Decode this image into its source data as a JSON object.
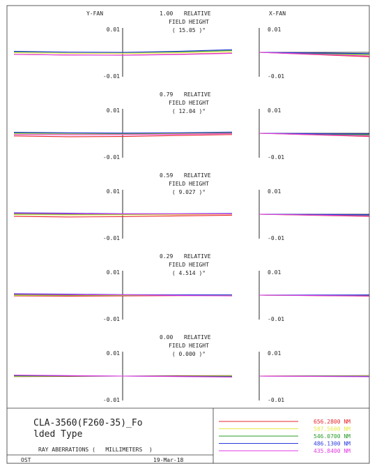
{
  "chart_data": {
    "type": "line",
    "title": "RAY ABERRATIONS ( MILLIMETERS )",
    "panel_labels": {
      "y_fan": "Y-FAN",
      "x_fan": "X-FAN"
    },
    "ylim": [
      -0.01,
      0.01
    ],
    "tick_labels": {
      "top": "0.01",
      "bottom": "-0.01"
    },
    "xlim": [
      -1,
      1
    ],
    "fields": [
      {
        "relative": "1.00",
        "rel_label": "RELATIVE",
        "height_label": "FIELD HEIGHT",
        "angle": "( 15.05 )°",
        "y_fan": [
          {
            "series": "656.2800 NM",
            "x": [
              -1,
              -0.5,
              0,
              0.5,
              1
            ],
            "y": [
              -0.00085,
              -0.0011,
              -0.00115,
              -0.0008,
              -0.0003
            ]
          },
          {
            "series": "587.5600 NM",
            "x": [
              -1,
              -0.5,
              0,
              0.5,
              1
            ],
            "y": [
              -0.0002,
              -0.0004,
              -0.0005,
              -0.0002,
              0.0003
            ]
          },
          {
            "series": "546.0700 NM",
            "x": [
              -1,
              -0.5,
              0,
              0.5,
              1
            ],
            "y": [
              0.0002,
              0.0,
              -0.0001,
              0.0002,
              0.0007
            ]
          },
          {
            "series": "486.1300 NM",
            "x": [
              -1,
              -0.5,
              0,
              0.5,
              1
            ],
            "y": [
              0.0004,
              0.0001,
              0.0,
              0.0004,
              0.0011
            ]
          },
          {
            "series": "435.8400 NM",
            "x": [
              -1,
              -0.5,
              0,
              0.5,
              1
            ],
            "y": [
              -0.0008,
              -0.0011,
              -0.0012,
              -0.0009,
              -0.0004
            ]
          }
        ],
        "x_fan": [
          {
            "series": "656.2800 NM",
            "x": [
              0,
              1
            ],
            "y": [
              0,
              -0.0018
            ]
          },
          {
            "series": "587.5600 NM",
            "x": [
              0,
              1
            ],
            "y": [
              0,
              -0.0012
            ]
          },
          {
            "series": "546.0700 NM",
            "x": [
              0,
              1
            ],
            "y": [
              0,
              -0.0008
            ]
          },
          {
            "series": "486.1300 NM",
            "x": [
              0,
              1
            ],
            "y": [
              0,
              -0.0005
            ]
          },
          {
            "series": "435.8400 NM",
            "x": [
              0,
              1
            ],
            "y": [
              0,
              -0.0015
            ]
          }
        ]
      },
      {
        "relative": "0.79",
        "rel_label": "RELATIVE",
        "height_label": "FIELD HEIGHT",
        "angle": "( 12.04 )°",
        "y_fan": [
          {
            "series": "656.2800 NM",
            "x": [
              -1,
              -0.5,
              0,
              0.5,
              1
            ],
            "y": [
              -0.0011,
              -0.0014,
              -0.0013,
              -0.0009,
              -0.0005
            ]
          },
          {
            "series": "587.5600 NM",
            "x": [
              -1,
              -0.5,
              0,
              0.5,
              1
            ],
            "y": [
              -0.0003,
              -0.0004,
              -0.0004,
              -0.0002,
              0.0001
            ]
          },
          {
            "series": "546.0700 NM",
            "x": [
              -1,
              -0.5,
              0,
              0.5,
              1
            ],
            "y": [
              0.0001,
              0.0,
              -0.0001,
              0.0001,
              0.0003
            ]
          },
          {
            "series": "486.1300 NM",
            "x": [
              -1,
              -0.5,
              0,
              0.5,
              1
            ],
            "y": [
              0.0004,
              0.0002,
              0.0001,
              0.0002,
              0.0005
            ]
          },
          {
            "series": "435.8400 NM",
            "x": [
              -1,
              -0.5,
              0,
              0.5,
              1
            ],
            "y": [
              -0.0005,
              -0.0006,
              -0.0006,
              -0.0004,
              -0.0001
            ]
          }
        ],
        "x_fan": [
          {
            "series": "656.2800 NM",
            "x": [
              0,
              1
            ],
            "y": [
              0,
              -0.0013
            ]
          },
          {
            "series": "587.5600 NM",
            "x": [
              0,
              1
            ],
            "y": [
              0,
              -0.0009
            ]
          },
          {
            "series": "546.0700 NM",
            "x": [
              0,
              1
            ],
            "y": [
              0,
              -0.0006
            ]
          },
          {
            "series": "486.1300 NM",
            "x": [
              0,
              1
            ],
            "y": [
              0,
              -0.0003
            ]
          },
          {
            "series": "435.8400 NM",
            "x": [
              0,
              1
            ],
            "y": [
              0,
              -0.0011
            ]
          }
        ]
      },
      {
        "relative": "0.59",
        "rel_label": "RELATIVE",
        "height_label": "FIELD HEIGHT",
        "angle": "( 9.027 )°",
        "y_fan": [
          {
            "series": "656.2800 NM",
            "x": [
              -1,
              -0.5,
              0,
              0.5,
              1
            ],
            "y": [
              -0.0009,
              -0.0011,
              -0.001,
              -0.0007,
              -0.0004
            ]
          },
          {
            "series": "587.5600 NM",
            "x": [
              -1,
              -0.5,
              0,
              0.5,
              1
            ],
            "y": [
              -0.0002,
              -0.0003,
              -0.0003,
              -0.0002,
              0.0
            ]
          },
          {
            "series": "546.0700 NM",
            "x": [
              -1,
              -0.5,
              0,
              0.5,
              1
            ],
            "y": [
              0.0001,
              0.0,
              0.0,
              0.0001,
              0.0002
            ]
          },
          {
            "series": "486.1300 NM",
            "x": [
              -1,
              -0.5,
              0,
              0.5,
              1
            ],
            "y": [
              0.0006,
              0.0004,
              0.0002,
              0.0002,
              0.0003
            ]
          },
          {
            "series": "435.8400 NM",
            "x": [
              -1,
              -0.5,
              0,
              0.5,
              1
            ],
            "y": [
              0.0004,
              0.0002,
              0.0001,
              0.0001,
              0.0001
            ]
          }
        ],
        "x_fan": [
          {
            "series": "656.2800 NM",
            "x": [
              0,
              1
            ],
            "y": [
              0,
              -0.0009
            ]
          },
          {
            "series": "587.5600 NM",
            "x": [
              0,
              1
            ],
            "y": [
              0,
              -0.0006
            ]
          },
          {
            "series": "546.0700 NM",
            "x": [
              0,
              1
            ],
            "y": [
              0,
              -0.0004
            ]
          },
          {
            "series": "486.1300 NM",
            "x": [
              0,
              1
            ],
            "y": [
              0,
              -0.0002
            ]
          },
          {
            "series": "435.8400 NM",
            "x": [
              0,
              1
            ],
            "y": [
              0,
              -0.0007
            ]
          }
        ]
      },
      {
        "relative": "0.29",
        "rel_label": "RELATIVE",
        "height_label": "FIELD HEIGHT",
        "angle": "( 4.514 )°",
        "y_fan": [
          {
            "series": "656.2800 NM",
            "x": [
              -1,
              -0.5,
              0,
              0.5,
              1
            ],
            "y": [
              -0.0003,
              -0.0004,
              -0.0003,
              -0.0002,
              -0.0001
            ]
          },
          {
            "series": "587.5600 NM",
            "x": [
              -1,
              -0.5,
              0,
              0.5,
              1
            ],
            "y": [
              -0.0001,
              -0.0001,
              -0.0001,
              0.0,
              0.0
            ]
          },
          {
            "series": "546.0700 NM",
            "x": [
              -1,
              -0.5,
              0,
              0.5,
              1
            ],
            "y": [
              0.0001,
              0.0,
              0.0,
              0.0,
              0.0001
            ]
          },
          {
            "series": "486.1300 NM",
            "x": [
              -1,
              -0.5,
              0,
              0.5,
              1
            ],
            "y": [
              0.0006,
              0.0004,
              0.0002,
              0.0001,
              0.0001
            ]
          },
          {
            "series": "435.8400 NM",
            "x": [
              -1,
              -0.5,
              0,
              0.5,
              1
            ],
            "y": [
              0.0004,
              0.0002,
              0.0001,
              -0.0001,
              -0.0003
            ]
          }
        ],
        "x_fan": [
          {
            "series": "656.2800 NM",
            "x": [
              0,
              1
            ],
            "y": [
              0,
              -0.0004
            ]
          },
          {
            "series": "587.5600 NM",
            "x": [
              0,
              1
            ],
            "y": [
              0,
              -0.0002
            ]
          },
          {
            "series": "546.0700 NM",
            "x": [
              0,
              1
            ],
            "y": [
              0,
              -0.0001
            ]
          },
          {
            "series": "486.1300 NM",
            "x": [
              0,
              1
            ],
            "y": [
              0,
              0.0001
            ]
          },
          {
            "series": "435.8400 NM",
            "x": [
              0,
              1
            ],
            "y": [
              0,
              -0.0003
            ]
          }
        ]
      },
      {
        "relative": "0.00",
        "rel_label": "RELATIVE",
        "height_label": "FIELD HEIGHT",
        "angle": "( 0.000 )°",
        "y_fan": [
          {
            "series": "656.2800 NM",
            "x": [
              -1,
              -0.5,
              0,
              0.5,
              1
            ],
            "y": [
              -0.0002,
              -0.0001,
              0.0,
              0.0001,
              0.0002
            ]
          },
          {
            "series": "587.5600 NM",
            "x": [
              -1,
              -0.5,
              0,
              0.5,
              1
            ],
            "y": [
              -0.0001,
              0.0,
              0.0,
              0.0,
              0.0001
            ]
          },
          {
            "series": "546.0700 NM",
            "x": [
              -1,
              -0.5,
              0,
              0.5,
              1
            ],
            "y": [
              0.0,
              0.0,
              0.0,
              0.0,
              0.0
            ]
          },
          {
            "series": "486.1300 NM",
            "x": [
              -1,
              -0.5,
              0,
              0.5,
              1
            ],
            "y": [
              0.0003,
              0.0001,
              0.0,
              -0.0001,
              -0.0003
            ]
          },
          {
            "series": "435.8400 NM",
            "x": [
              -1,
              -0.5,
              0,
              0.5,
              1
            ],
            "y": [
              0.0004,
              0.0002,
              0.0,
              -0.0002,
              -0.0004
            ]
          }
        ],
        "x_fan": [
          {
            "series": "656.2800 NM",
            "x": [
              0,
              1
            ],
            "y": [
              0,
              0.0002
            ]
          },
          {
            "series": "587.5600 NM",
            "x": [
              0,
              1
            ],
            "y": [
              0,
              0.0001
            ]
          },
          {
            "series": "546.0700 NM",
            "x": [
              0,
              1
            ],
            "y": [
              0,
              0.0
            ]
          },
          {
            "series": "486.1300 NM",
            "x": [
              0,
              1
            ],
            "y": [
              0,
              -0.0001
            ]
          },
          {
            "series": "435.8400 NM",
            "x": [
              0,
              1
            ],
            "y": [
              0,
              -0.0003
            ]
          }
        ]
      }
    ],
    "legend": [
      {
        "label": "656.2800 NM",
        "color": "#e8242b"
      },
      {
        "label": "587.5600 NM",
        "color": "#e8e84a"
      },
      {
        "label": "546.0700 NM",
        "color": "#2a9a2a"
      },
      {
        "label": "486.1300 NM",
        "color": "#2a3ad8"
      },
      {
        "label": "435.8400 NM",
        "color": "#e23ae2"
      }
    ],
    "grid": false,
    "legend_placement": "bottom-right"
  },
  "footer": {
    "design_name_line1": "CLA-3560(F260-35)_Fo",
    "design_name_line2": "lded Type",
    "subtitle": "RAY ABERRATIONS (   MILLIMETERS  )",
    "left_tag": "OST",
    "date": "19-Mar-18"
  },
  "colors": {
    "black": "#111111"
  }
}
